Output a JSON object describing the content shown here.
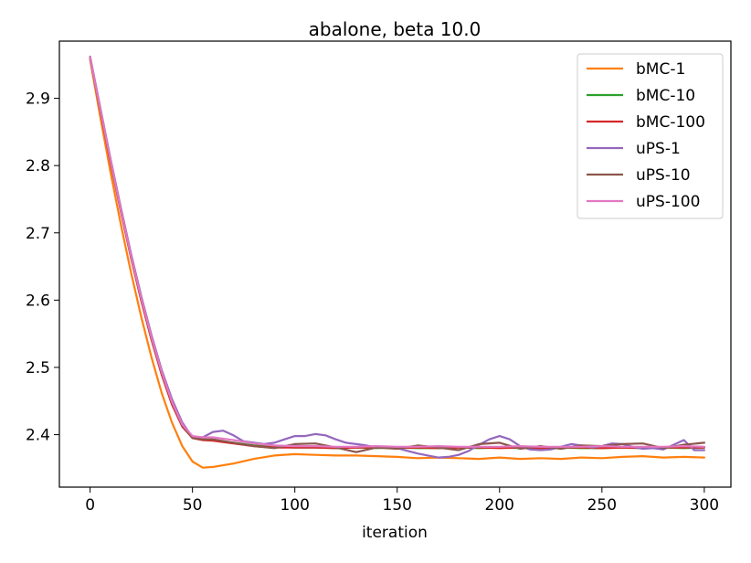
{
  "chart_data": {
    "type": "line",
    "title": "abalone, beta 10.0",
    "xlabel": "iteration",
    "ylabel": "",
    "xlim": [
      -15,
      313
    ],
    "ylim": [
      2.322,
      2.985
    ],
    "xticks": [
      0,
      50,
      100,
      150,
      200,
      250,
      300
    ],
    "yticks": [
      2.4,
      2.5,
      2.6,
      2.7,
      2.8,
      2.9
    ],
    "legend_position": "top-right",
    "grid": false,
    "series": [
      {
        "name": "bMC-1",
        "color": "#ff7f0e",
        "x": [
          0,
          5,
          10,
          15,
          20,
          25,
          30,
          35,
          40,
          45,
          50,
          55,
          60,
          70,
          80,
          90,
          100,
          110,
          120,
          130,
          140,
          150,
          160,
          170,
          180,
          190,
          200,
          210,
          220,
          230,
          240,
          250,
          260,
          270,
          280,
          290,
          300
        ],
        "y": [
          2.958,
          2.872,
          2.79,
          2.713,
          2.641,
          2.575,
          2.515,
          2.462,
          2.418,
          2.383,
          2.36,
          2.351,
          2.352,
          2.357,
          2.364,
          2.369,
          2.371,
          2.37,
          2.369,
          2.369,
          2.368,
          2.367,
          2.365,
          2.366,
          2.365,
          2.364,
          2.366,
          2.364,
          2.365,
          2.364,
          2.366,
          2.365,
          2.367,
          2.368,
          2.366,
          2.367,
          2.366
        ]
      },
      {
        "name": "bMC-10",
        "color": "#2ca02c",
        "x": [
          0,
          5,
          10,
          15,
          20,
          25,
          30,
          35,
          40,
          45,
          50,
          55,
          60,
          70,
          80,
          90,
          100,
          110,
          120,
          130,
          140,
          150,
          160,
          170,
          180,
          190,
          200,
          210,
          220,
          230,
          240,
          250,
          260,
          270,
          280,
          290,
          300
        ],
        "y": [
          2.96,
          2.882,
          2.806,
          2.733,
          2.664,
          2.601,
          2.543,
          2.491,
          2.447,
          2.415,
          2.397,
          2.393,
          2.392,
          2.388,
          2.384,
          2.382,
          2.381,
          2.381,
          2.38,
          2.381,
          2.38,
          2.381,
          2.38,
          2.38,
          2.381,
          2.38,
          2.381,
          2.38,
          2.38,
          2.381,
          2.38,
          2.38,
          2.381,
          2.38,
          2.381,
          2.38,
          2.381
        ]
      },
      {
        "name": "bMC-100",
        "color": "#d62728",
        "x": [
          0,
          5,
          10,
          15,
          20,
          25,
          30,
          35,
          40,
          45,
          50,
          55,
          60,
          70,
          80,
          90,
          100,
          110,
          120,
          130,
          140,
          150,
          160,
          170,
          180,
          190,
          200,
          210,
          220,
          230,
          240,
          250,
          260,
          270,
          280,
          290,
          300
        ],
        "y": [
          2.96,
          2.882,
          2.805,
          2.732,
          2.663,
          2.599,
          2.541,
          2.489,
          2.445,
          2.412,
          2.395,
          2.392,
          2.391,
          2.387,
          2.383,
          2.381,
          2.381,
          2.381,
          2.38,
          2.381,
          2.381,
          2.38,
          2.381,
          2.38,
          2.381,
          2.381,
          2.38,
          2.381,
          2.38,
          2.381,
          2.381,
          2.38,
          2.381,
          2.38,
          2.381,
          2.381,
          2.381
        ]
      },
      {
        "name": "uPS-1",
        "color": "#9467bd",
        "x": [
          0,
          5,
          10,
          15,
          20,
          25,
          30,
          35,
          40,
          45,
          50,
          55,
          60,
          65,
          70,
          75,
          80,
          85,
          90,
          95,
          100,
          105,
          110,
          115,
          120,
          125,
          130,
          135,
          140,
          145,
          150,
          155,
          160,
          165,
          170,
          175,
          180,
          185,
          190,
          195,
          200,
          205,
          210,
          215,
          220,
          225,
          230,
          235,
          240,
          245,
          250,
          255,
          260,
          265,
          270,
          275,
          280,
          285,
          290,
          295,
          300
        ],
        "y": [
          2.962,
          2.886,
          2.81,
          2.738,
          2.669,
          2.606,
          2.548,
          2.496,
          2.453,
          2.418,
          2.396,
          2.396,
          2.404,
          2.406,
          2.399,
          2.39,
          2.388,
          2.386,
          2.388,
          2.393,
          2.398,
          2.398,
          2.401,
          2.399,
          2.393,
          2.388,
          2.386,
          2.384,
          2.381,
          2.382,
          2.38,
          2.376,
          2.372,
          2.369,
          2.366,
          2.367,
          2.37,
          2.376,
          2.385,
          2.393,
          2.398,
          2.393,
          2.383,
          2.378,
          2.377,
          2.378,
          2.382,
          2.386,
          2.384,
          2.381,
          2.383,
          2.387,
          2.386,
          2.382,
          2.379,
          2.38,
          2.378,
          2.385,
          2.392,
          2.377,
          2.377
        ]
      },
      {
        "name": "uPS-10",
        "color": "#8c564b",
        "x": [
          0,
          5,
          10,
          15,
          20,
          25,
          30,
          35,
          40,
          45,
          50,
          55,
          60,
          70,
          80,
          90,
          100,
          110,
          120,
          130,
          140,
          150,
          160,
          170,
          180,
          190,
          200,
          210,
          220,
          230,
          240,
          250,
          260,
          270,
          280,
          290,
          300
        ],
        "y": [
          2.961,
          2.883,
          2.807,
          2.734,
          2.666,
          2.602,
          2.544,
          2.492,
          2.448,
          2.414,
          2.395,
          2.393,
          2.393,
          2.388,
          2.383,
          2.38,
          2.386,
          2.387,
          2.381,
          2.374,
          2.381,
          2.379,
          2.384,
          2.381,
          2.377,
          2.386,
          2.388,
          2.379,
          2.383,
          2.379,
          2.384,
          2.383,
          2.386,
          2.387,
          2.38,
          2.385,
          2.388
        ]
      },
      {
        "name": "uPS-100",
        "color": "#e377c2",
        "x": [
          0,
          5,
          10,
          15,
          20,
          25,
          30,
          35,
          40,
          45,
          50,
          55,
          60,
          70,
          80,
          90,
          100,
          110,
          120,
          130,
          140,
          150,
          160,
          170,
          180,
          190,
          200,
          210,
          220,
          230,
          240,
          250,
          260,
          270,
          280,
          290,
          300
        ],
        "y": [
          2.961,
          2.884,
          2.808,
          2.735,
          2.666,
          2.603,
          2.545,
          2.493,
          2.449,
          2.415,
          2.398,
          2.396,
          2.396,
          2.392,
          2.387,
          2.384,
          2.383,
          2.383,
          2.382,
          2.382,
          2.383,
          2.382,
          2.382,
          2.383,
          2.382,
          2.382,
          2.382,
          2.383,
          2.382,
          2.382,
          2.382,
          2.383,
          2.382,
          2.382,
          2.382,
          2.383,
          2.382
        ]
      }
    ]
  }
}
